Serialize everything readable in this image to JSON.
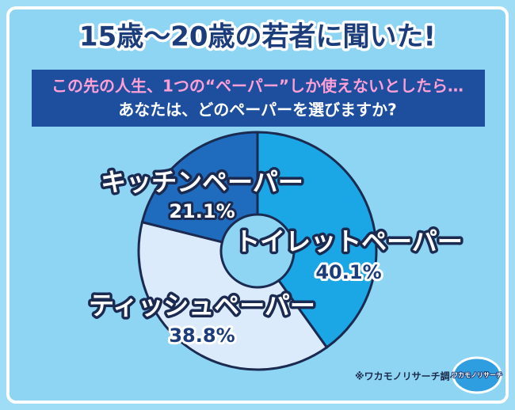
{
  "chart_data": {
    "type": "pie",
    "title": "15歳〜20歳の若者に聞いた!",
    "subtitle": [
      "この先の人生、1つの“ペーパー”しか使えないとしたら…",
      "あなたは、どのペーパーを選びますか?"
    ],
    "categories": [
      "トイレットペーパー",
      "ティッシュペーパー",
      "キッチンペーパー"
    ],
    "values": [
      40.1,
      38.8,
      21.1
    ],
    "value_labels": [
      "40.1%",
      "38.8%",
      "21.1%"
    ],
    "colors": [
      "#1ba7e6",
      "#dcebfb",
      "#1f6cbf"
    ],
    "source": "※ワカモノリサーチ調べ",
    "logo": "ワカモノリサーチ"
  }
}
